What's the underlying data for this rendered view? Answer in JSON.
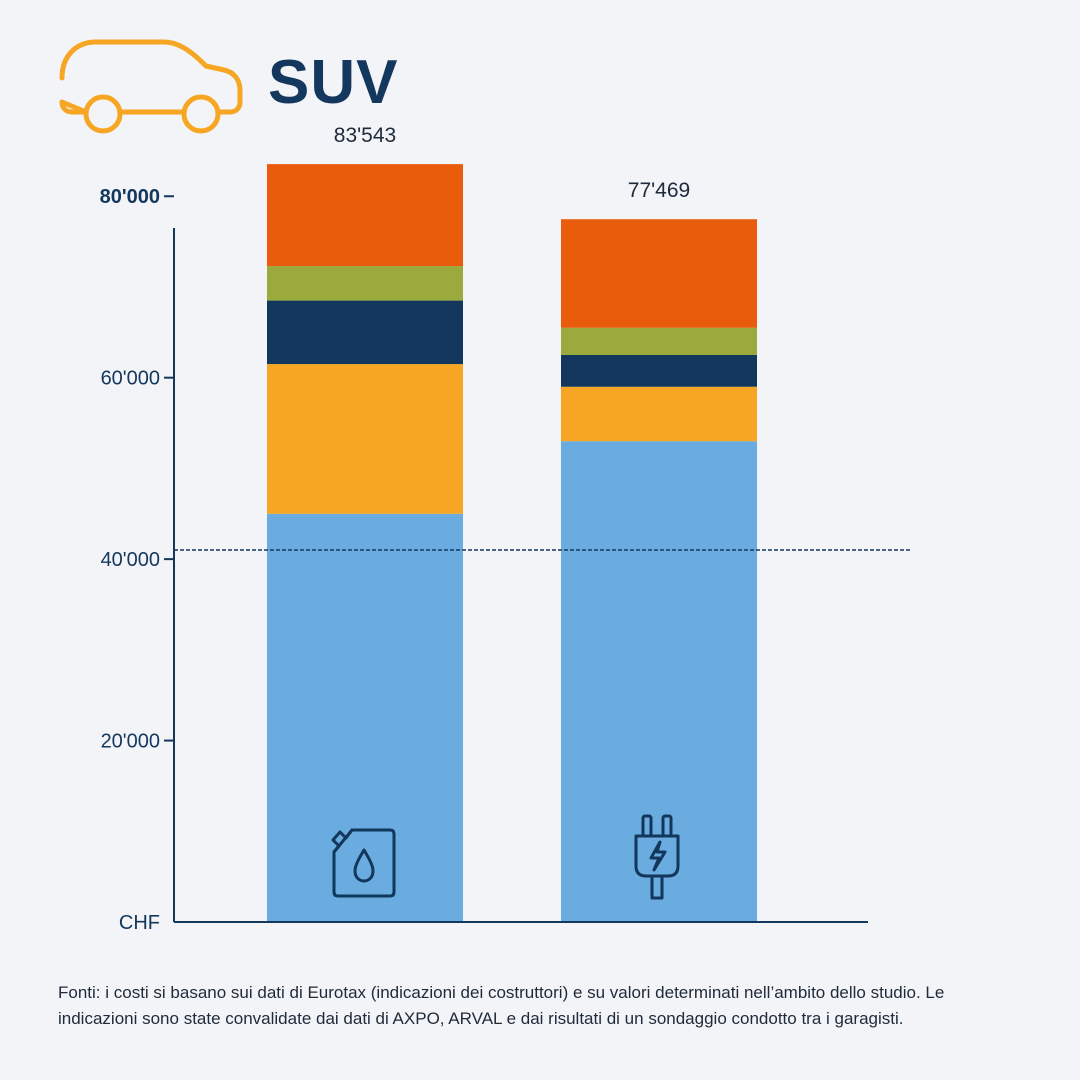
{
  "header": {
    "title": "SUV",
    "icon": "car-outline-icon",
    "icon_color": "#f6a623"
  },
  "chart_data": {
    "type": "bar",
    "stacked": true,
    "categories": [
      "Combustion",
      "Electric"
    ],
    "category_icons": [
      "fuel-canister-icon",
      "electric-plug-icon"
    ],
    "totals": [
      83543,
      77469
    ],
    "total_labels": [
      "83'543",
      "77'469"
    ],
    "series": [
      {
        "values": [
          45000,
          53000
        ],
        "color": "#6aace0"
      },
      {
        "values": [
          16500,
          6000
        ],
        "color": "#f6a623"
      },
      {
        "values": [
          7000,
          3500
        ],
        "color": "#13365c"
      },
      {
        "values": [
          3800,
          3000
        ],
        "color": "#9aaa3d"
      },
      {
        "values": [
          11243,
          11969
        ],
        "color": "#e95c0c"
      }
    ],
    "ylim": [
      0,
      82000
    ],
    "yticks": [
      0,
      20000,
      40000,
      60000,
      80000
    ],
    "ytick_labels": [
      "CHF",
      "20'000",
      "40'000",
      "60'000",
      "80'000"
    ],
    "reference_line": 41000,
    "grid": false,
    "legend": "none",
    "axis_color": "#14375e"
  },
  "footnote": "Fonti: i costi si basano sui dati di Eurotax (indicazioni dei costruttori) e su valori determinati nell’ambito dello studio. Le indicazioni sono state convalidate dai dati di AXPO, ARVAL e dai risultati di un sondaggio condotto tra i garagisti."
}
